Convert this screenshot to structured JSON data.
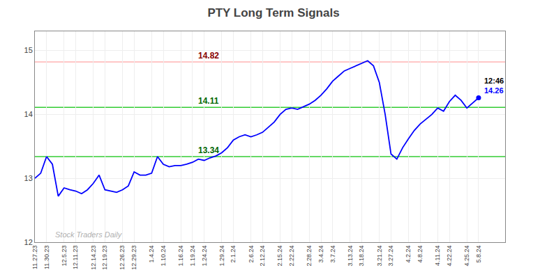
{
  "chart_data": {
    "type": "line",
    "title": "PTY Long Term Signals",
    "categories": [
      "11.27.23",
      null,
      "11.30.23",
      null,
      null,
      "12.5.23",
      null,
      "12.11.23",
      null,
      null,
      "12.14.23",
      null,
      "12.19.23",
      null,
      null,
      "12.26.23",
      null,
      "12.29.23",
      null,
      null,
      "1.4.24",
      null,
      "1.10.24",
      null,
      null,
      "1.16.24",
      null,
      "1.19.24",
      null,
      "1.24.24",
      null,
      null,
      "1.29.24",
      null,
      "2.1.24",
      null,
      null,
      "2.6.24",
      null,
      "2.12.24",
      null,
      null,
      "2.15.24",
      null,
      "2.22.24",
      null,
      null,
      "2.28.24",
      null,
      "3.4.24",
      null,
      "3.7.24",
      null,
      null,
      "3.13.24",
      null,
      "3.18.24",
      null,
      null,
      "3.21.24",
      null,
      "3.27.24",
      null,
      null,
      "4.2.24",
      null,
      "4.8.24",
      null,
      null,
      "4.11.24",
      null,
      "4.22.24",
      null,
      null,
      "4.25.24",
      null,
      "5.8.24"
    ],
    "values": [
      13.0,
      13.08,
      13.34,
      13.22,
      12.72,
      12.85,
      12.82,
      12.8,
      12.76,
      12.82,
      12.92,
      13.05,
      12.82,
      12.8,
      12.78,
      12.82,
      12.88,
      13.1,
      13.05,
      13.05,
      13.08,
      13.34,
      13.22,
      13.18,
      13.2,
      13.2,
      13.22,
      13.25,
      13.3,
      13.28,
      13.32,
      13.35,
      13.4,
      13.48,
      13.6,
      13.65,
      13.68,
      13.65,
      13.68,
      13.72,
      13.8,
      13.88,
      14.0,
      14.08,
      14.1,
      14.08,
      14.12,
      14.16,
      14.22,
      14.3,
      14.4,
      14.52,
      14.6,
      14.68,
      14.72,
      14.76,
      14.8,
      14.84,
      14.76,
      14.5,
      14.0,
      13.38,
      13.3,
      13.48,
      13.62,
      13.75,
      13.85,
      13.92,
      14.0,
      14.1,
      14.05,
      14.2,
      14.3,
      14.22,
      14.1,
      14.18,
      14.26
    ],
    "color": "blue",
    "ylim": [
      12.0,
      15.3
    ],
    "yticks": [
      12,
      13,
      14,
      15
    ],
    "grid": true,
    "hlines": [
      {
        "value": 14.82,
        "label": "14.82",
        "color": "#ffb3b3",
        "label_color": "#880000"
      },
      {
        "value": 14.11,
        "label": "14.11",
        "color": "#33cc33",
        "label_color": "#006600"
      },
      {
        "value": 13.34,
        "label": "13.34",
        "color": "#33cc33",
        "label_color": "#006600"
      }
    ],
    "annotations": [
      {
        "text": "12:46",
        "color": "black"
      },
      {
        "text": "14.26",
        "color": "blue"
      }
    ],
    "watermark": "Stock Traders Daily"
  }
}
